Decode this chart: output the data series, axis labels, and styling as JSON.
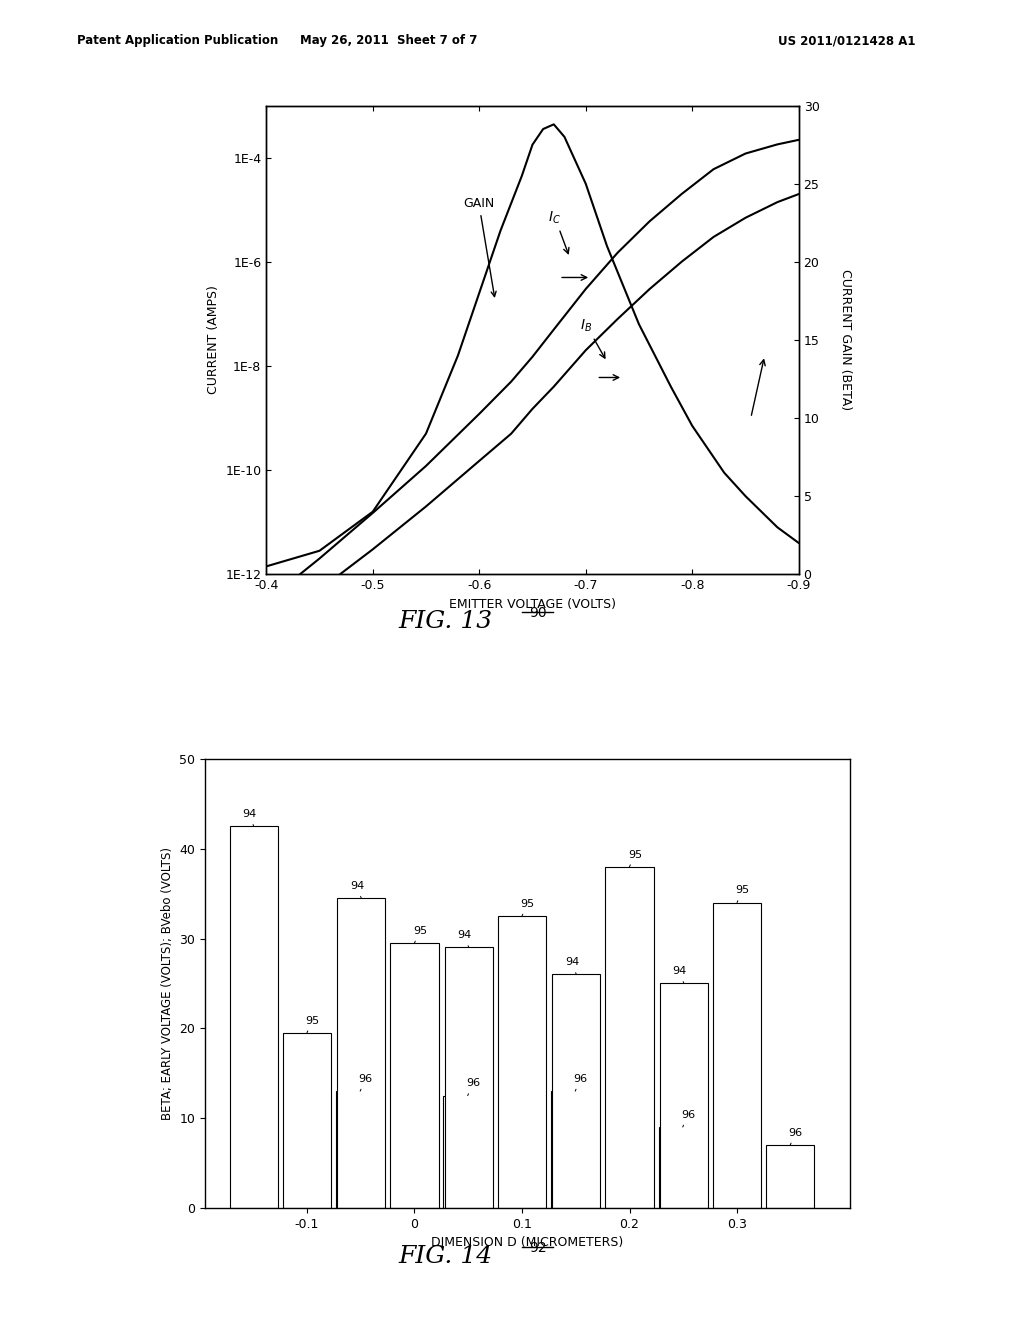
{
  "header_left": "Patent Application Publication",
  "header_mid": "May 26, 2011  Sheet 7 of 7",
  "header_right": "US 2011/0121428 A1",
  "fig13_label": "FIG. 13",
  "fig13_ref": "90",
  "fig14_label": "FIG. 14",
  "fig14_ref": "92",
  "fig13": {
    "xlabel": "EMITTER VOLTAGE (VOLTS)",
    "ylabel_left": "CURRENT (AMPS)",
    "ylabel_right": "CURRENT GAIN (BETA)",
    "IC_x": [
      -0.4,
      -0.45,
      -0.5,
      -0.55,
      -0.6,
      -0.63,
      -0.65,
      -0.67,
      -0.7,
      -0.73,
      -0.76,
      -0.79,
      -0.82,
      -0.85,
      -0.88,
      -0.9
    ],
    "IC_y": [
      3e-13,
      2e-12,
      1.5e-11,
      1.2e-10,
      1.2e-09,
      5e-09,
      1.5e-08,
      5e-08,
      3e-07,
      1.5e-06,
      6e-06,
      2e-05,
      6e-05,
      0.00012,
      0.00018,
      0.00022
    ],
    "IB_x": [
      -0.4,
      -0.45,
      -0.5,
      -0.55,
      -0.6,
      -0.63,
      -0.65,
      -0.67,
      -0.7,
      -0.73,
      -0.76,
      -0.79,
      -0.82,
      -0.85,
      -0.88,
      -0.9
    ],
    "IB_y": [
      1e-13,
      5e-13,
      3e-12,
      2e-11,
      1.5e-10,
      5e-10,
      1.5e-09,
      4e-09,
      2e-08,
      8e-08,
      3e-07,
      1e-06,
      3e-06,
      7e-06,
      1.4e-05,
      2e-05
    ],
    "GAIN_x": [
      -0.4,
      -0.45,
      -0.5,
      -0.55,
      -0.58,
      -0.6,
      -0.62,
      -0.64,
      -0.65,
      -0.66,
      -0.67,
      -0.68,
      -0.7,
      -0.72,
      -0.75,
      -0.78,
      -0.8,
      -0.83,
      -0.85,
      -0.88,
      -0.9
    ],
    "GAIN_y": [
      0.5,
      1.5,
      4.0,
      9.0,
      14.0,
      18.0,
      22.0,
      25.5,
      27.5,
      28.5,
      28.8,
      28.0,
      25.0,
      21.0,
      16.0,
      12.0,
      9.5,
      6.5,
      5.0,
      3.0,
      2.0
    ]
  },
  "fig14": {
    "categories": [
      -0.1,
      0.0,
      0.1,
      0.2,
      0.3
    ],
    "bar94": [
      42.5,
      34.5,
      29.0,
      26.0,
      25.0
    ],
    "bar95": [
      19.5,
      29.5,
      32.5,
      38.0,
      34.0
    ],
    "bar96": [
      13.0,
      12.5,
      13.0,
      9.0,
      7.0
    ],
    "xlabel": "DIMENSION D (MICROMETERS)",
    "ylabel": "BETA; EARLY VOLTAGE (VOLTS); BVebo (VOLTS)",
    "ylim": [
      0,
      50
    ],
    "yticks": [
      0,
      10,
      20,
      30,
      40,
      50
    ],
    "xtick_labels": [
      "-0.1",
      "0",
      "0.1",
      "0.2",
      "0.3"
    ],
    "label94": "94",
    "label95": "95",
    "label96": "96",
    "bar_color": "#ffffff",
    "bar_edgecolor": "#000000"
  }
}
